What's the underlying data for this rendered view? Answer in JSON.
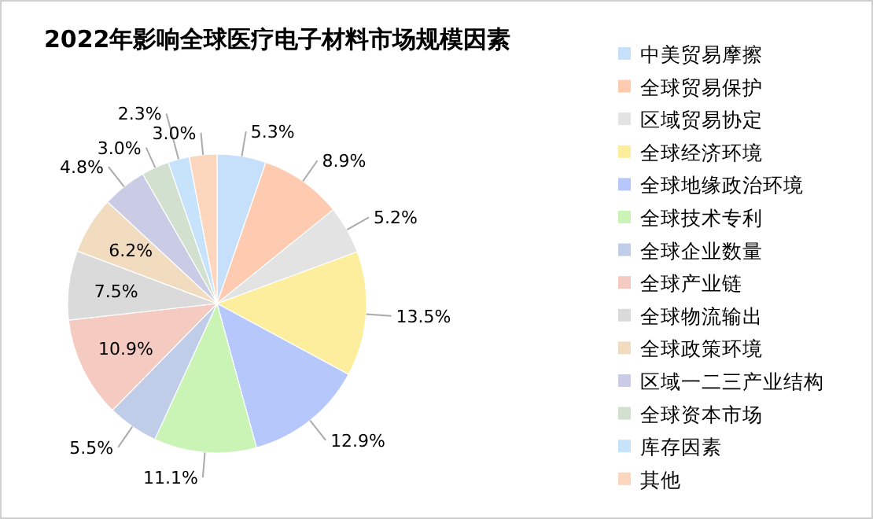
{
  "chart_data": {
    "type": "pie",
    "title": "2022年影响全球医疗电子材料市场规模因素",
    "categories": [
      "中美贸易摩擦",
      "全球贸易保护",
      "区域贸易协定",
      "全球经济环境",
      "全球地缘政治环境",
      "全球技术专利",
      "全球企业数量",
      "全球产业链",
      "全球物流输出",
      "全球政策环境",
      "区域一二三产业结构",
      "全球资本市场",
      "库存因素",
      "其他"
    ],
    "values": [
      5.3,
      8.9,
      5.2,
      13.5,
      12.9,
      11.1,
      5.5,
      10.9,
      7.5,
      6.2,
      4.8,
      3.0,
      2.3,
      3.0
    ],
    "value_labels": [
      "5.3%",
      "8.9%",
      "5.2%",
      "13.5%",
      "12.9%",
      "11.1%",
      "5.5%",
      "10.9%",
      "7.5%",
      "6.2%",
      "4.8%",
      "3.0%",
      "2.3%",
      "3.0%"
    ],
    "colors": [
      "#c6e0fb",
      "#fecab0",
      "#e3e3e3",
      "#fdee9e",
      "#b6c8fb",
      "#c9f4b6",
      "#bfcde9",
      "#f4cac1",
      "#dadada",
      "#f1dcc0",
      "#c9cce4",
      "#d2e0cf",
      "#c6e3fb",
      "#fdd6be"
    ],
    "legend": "right"
  }
}
